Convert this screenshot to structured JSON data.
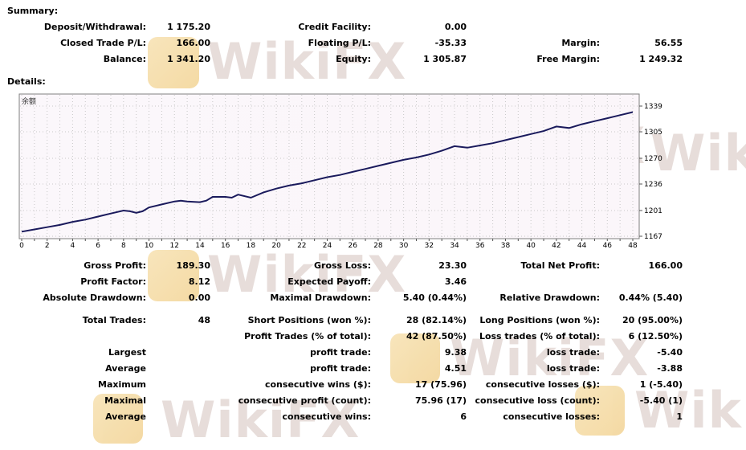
{
  "summary": {
    "title": "Summary:",
    "deposit_withdrawal": {
      "label": "Deposit/Withdrawal:",
      "value": "1 175.20"
    },
    "credit_facility": {
      "label": "Credit Facility:",
      "value": "0.00"
    },
    "closed_trade_pl": {
      "label": "Closed Trade P/L:",
      "value": "166.00"
    },
    "floating_pl": {
      "label": "Floating P/L:",
      "value": "-35.33"
    },
    "margin": {
      "label": "Margin:",
      "value": "56.55"
    },
    "balance": {
      "label": "Balance:",
      "value": "1 341.20"
    },
    "equity": {
      "label": "Equity:",
      "value": "1 305.87"
    },
    "free_margin": {
      "label": "Free Margin:",
      "value": "1 249.32"
    }
  },
  "details": {
    "title": "Details:",
    "chart_corner_label": "余额"
  },
  "chart_data": {
    "type": "line",
    "title": "",
    "xlabel": "",
    "ylabel": "",
    "x_ticks": [
      "0",
      "2",
      "4",
      "6",
      "8",
      "10",
      "12",
      "14",
      "16",
      "18",
      "20",
      "22",
      "24",
      "26",
      "28",
      "30",
      "32",
      "34",
      "36",
      "38",
      "40",
      "42",
      "44",
      "46",
      "48"
    ],
    "y_ticks": [
      "1339",
      "1305",
      "1270",
      "1236",
      "1201",
      "1167"
    ],
    "xlim": [
      0,
      48
    ],
    "ylim": [
      1167,
      1339
    ],
    "grid": true,
    "series": [
      {
        "name": "",
        "color": "#1a1a5c",
        "x": [
          0,
          1,
          2,
          3,
          4,
          5,
          6,
          7,
          8,
          8.5,
          9,
          9.5,
          10,
          11,
          12,
          12.5,
          13,
          14,
          14.5,
          15,
          16,
          16.5,
          17,
          18,
          19,
          20,
          21,
          22,
          23,
          24,
          25,
          26,
          27,
          28,
          29,
          30,
          31,
          32,
          33,
          34,
          35,
          36,
          37,
          38,
          39,
          40,
          41,
          42,
          43,
          44,
          45,
          46,
          47,
          48
        ],
        "values": [
          1173,
          1176,
          1179,
          1182,
          1186,
          1189,
          1193,
          1197,
          1201,
          1200,
          1198,
          1200,
          1205,
          1209,
          1213,
          1214,
          1213,
          1212,
          1214,
          1219,
          1219,
          1218,
          1222,
          1218,
          1225,
          1230,
          1234,
          1237,
          1241,
          1245,
          1248,
          1252,
          1256,
          1260,
          1264,
          1268,
          1271,
          1275,
          1280,
          1286,
          1284,
          1287,
          1290,
          1294,
          1298,
          1302,
          1306,
          1312,
          1310,
          1315,
          1319,
          1323,
          1327,
          1331
        ]
      }
    ]
  },
  "stats": {
    "gross_profit": {
      "label": "Gross Profit:",
      "value": "189.30"
    },
    "gross_loss": {
      "label": "Gross Loss:",
      "value": "23.30"
    },
    "total_net_profit": {
      "label": "Total Net Profit:",
      "value": "166.00"
    },
    "profit_factor": {
      "label": "Profit Factor:",
      "value": "8.12"
    },
    "expected_payoff": {
      "label": "Expected Payoff:",
      "value": "3.46"
    },
    "absolute_drawdown": {
      "label": "Absolute Drawdown:",
      "value": "0.00"
    },
    "maximal_drawdown": {
      "label": "Maximal Drawdown:",
      "value": "5.40 (0.44%)"
    },
    "relative_drawdown": {
      "label": "Relative Drawdown:",
      "value": "0.44% (5.40)"
    },
    "total_trades": {
      "label": "Total Trades:",
      "value": "48"
    },
    "short_positions": {
      "label": "Short Positions (won %):",
      "value": "28 (82.14%)"
    },
    "long_positions": {
      "label": "Long Positions (won %):",
      "value": "20 (95.00%)"
    },
    "profit_trades": {
      "label": "Profit Trades (% of total):",
      "value": "42 (87.50%)"
    },
    "loss_trades": {
      "label": "Loss trades (% of total):",
      "value": "6 (12.50%)"
    },
    "largest": {
      "label": "Largest",
      "profit_label": "profit trade:",
      "profit_value": "9.38",
      "loss_label": "loss trade:",
      "loss_value": "-5.40"
    },
    "average": {
      "label": "Average",
      "profit_label": "profit trade:",
      "profit_value": "4.51",
      "loss_label": "loss trade:",
      "loss_value": "-3.88"
    },
    "maximum": {
      "label": "Maximum",
      "profit_label": "consecutive wins ($):",
      "profit_value": "17 (75.96)",
      "loss_label": "consecutive losses ($):",
      "loss_value": "1 (-5.40)"
    },
    "maximal": {
      "label": "Maximal",
      "profit_label": "consecutive profit (count):",
      "profit_value": "75.96 (17)",
      "loss_label": "consecutive loss (count):",
      "loss_value": "-5.40 (1)"
    },
    "average2": {
      "label": "Average",
      "profit_label": "consecutive wins:",
      "profit_value": "6",
      "loss_label": "consecutive losses:",
      "loss_value": "1"
    }
  },
  "watermark": {
    "text": "WikiFX"
  }
}
